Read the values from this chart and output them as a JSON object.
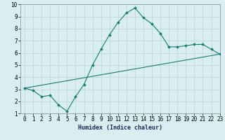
{
  "title": "",
  "xlabel": "Humidex (Indice chaleur)",
  "bg_color": "#d8eef0",
  "grid_color": "#c0d8da",
  "line_color": "#1a7a6e",
  "xlim": [
    -0.5,
    23
  ],
  "ylim": [
    1,
    10
  ],
  "xticks": [
    0,
    1,
    2,
    3,
    4,
    5,
    6,
    7,
    8,
    9,
    10,
    11,
    12,
    13,
    14,
    15,
    16,
    17,
    18,
    19,
    20,
    21,
    22,
    23
  ],
  "yticks": [
    1,
    2,
    3,
    4,
    5,
    6,
    7,
    8,
    9,
    10
  ],
  "curve1_x": [
    0,
    1,
    2,
    3,
    4,
    5,
    6,
    7,
    8,
    9,
    10,
    11,
    12,
    13,
    14,
    15,
    16,
    17,
    18,
    19,
    20,
    21,
    22,
    23
  ],
  "curve1_y": [
    3.1,
    2.9,
    2.4,
    2.5,
    1.7,
    1.2,
    2.4,
    3.4,
    5.0,
    6.3,
    7.5,
    8.5,
    9.3,
    9.7,
    8.9,
    8.4,
    7.6,
    6.5,
    6.5,
    6.6,
    6.7,
    6.7,
    6.3,
    5.9
  ],
  "curve2_x": [
    0,
    23
  ],
  "curve2_y": [
    3.1,
    5.9
  ],
  "xlabel_fontsize": 6,
  "tick_fontsize": 5.5
}
